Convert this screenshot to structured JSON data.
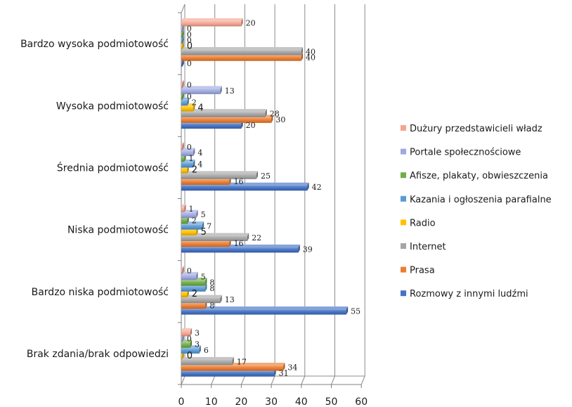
{
  "chart_data": {
    "type": "bar",
    "orientation": "horizontal",
    "style": "3d-clustered",
    "categories": [
      "Brak zdania/brak odpowiedzi",
      "Bardzo niska podmiotowość",
      "Niska podmiotowość",
      "Średnia podmiotowość",
      "Wysoka podmiotowość",
      "Bardzo wysoka podmiotowość"
    ],
    "series": [
      {
        "name": "Rozmowy z innymi ludźmi",
        "color": "#4472c4",
        "values": [
          31,
          55,
          39,
          42,
          20,
          0
        ]
      },
      {
        "name": "Prasa",
        "color": "#ed7d31",
        "values": [
          34,
          8,
          16,
          16,
          30,
          40
        ]
      },
      {
        "name": "Internet",
        "color": "#a5a5a5",
        "values": [
          17,
          13,
          22,
          25,
          28,
          40
        ]
      },
      {
        "name": "Radio",
        "color": "#ffc000",
        "values": [
          0,
          2,
          5,
          2,
          4,
          0
        ]
      },
      {
        "name": "Kazania i ogłoszenia parafialne",
        "color": "#5b9bd5",
        "values": [
          6,
          8,
          7,
          4,
          2,
          0
        ]
      },
      {
        "name": "Afisze, plakaty, obwieszczenia",
        "color": "#70ad47",
        "values": [
          3,
          8,
          2,
          1,
          0,
          0
        ]
      },
      {
        "name": "Portale społecznościowe",
        "color": "#9ea9e0",
        "values": [
          0,
          5,
          5,
          4,
          13,
          0
        ]
      },
      {
        "name": "Dużury przedstawicieli władz",
        "color": "#f4a590",
        "values": [
          3,
          0,
          1,
          0,
          0,
          20
        ]
      }
    ],
    "data_labels": [
      [
        "31",
        "55",
        "39",
        "42",
        "20",
        "0"
      ],
      [
        "34",
        "8",
        "16",
        "16",
        "30",
        "40"
      ],
      [
        "17",
        "13",
        "22",
        "25",
        "28",
        "40"
      ],
      [
        "0",
        "2",
        "5",
        "2",
        "4",
        "0"
      ],
      [
        "6",
        "8",
        "7",
        "4",
        "2",
        "0"
      ],
      [
        "3",
        "8",
        "2",
        "1",
        "0",
        "0"
      ],
      [
        "0",
        "5",
        "5",
        "4",
        "13",
        "0"
      ],
      [
        "3",
        "0",
        "1",
        "0",
        "0",
        "20"
      ]
    ],
    "xlim": [
      0,
      60
    ],
    "xticks": [
      "0",
      "10",
      "20",
      "30",
      "40",
      "50",
      "60"
    ],
    "grid": true,
    "legend_position": "right"
  }
}
